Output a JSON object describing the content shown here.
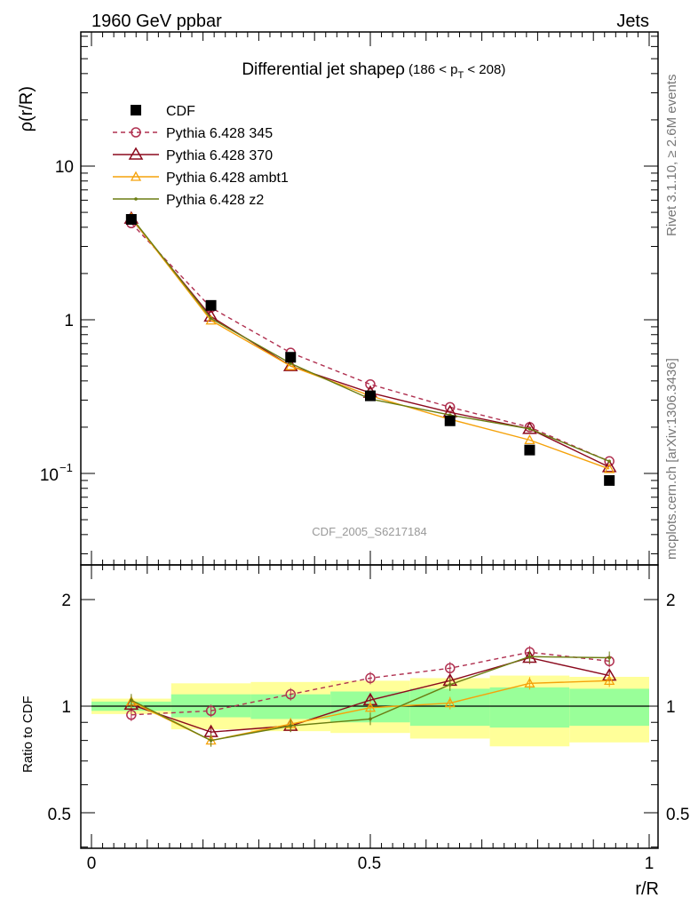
{
  "header": {
    "left": "1960 GeV ppbar",
    "right": "Jets"
  },
  "side_labels": {
    "rivet": "Rivet 3.1.10, ≥ 2.6M events",
    "mcplots": "mcplots.cern.ch [arXiv:1306.3436]"
  },
  "main": {
    "title_main": "Differential jet shapeρ",
    "title_range_a": "(186 < p",
    "title_range_sub": "T",
    "title_range_b": " < 208)",
    "ylabel": "ρ(r/R)",
    "watermark": "CDF_2005_S6217184",
    "ytick_labels": [
      "10",
      "1",
      "10"
    ],
    "ytick_exp": "−1"
  },
  "ratio": {
    "ylabel": "Ratio to CDF",
    "ytick_labels": [
      "2",
      "1",
      "0.5"
    ]
  },
  "xaxis": {
    "label": "r/R",
    "tick_labels": [
      "0",
      "0.5",
      "1"
    ]
  },
  "chart_data": [
    {
      "type": "line",
      "panel": "main",
      "ylog": true,
      "ylim": [
        0.025,
        60
      ],
      "xlim": [
        -0.03,
        1.0
      ],
      "xlabel": "r/R",
      "ylabel": "ρ(r/R)",
      "x": [
        0.0714,
        0.2143,
        0.3571,
        0.5,
        0.6429,
        0.7857,
        0.9286
      ],
      "series": [
        {
          "name": "CDF",
          "style": "data",
          "color": "#000000",
          "values": [
            4.5,
            1.24,
            0.57,
            0.32,
            0.22,
            0.142,
            0.09
          ]
        },
        {
          "name": "Pythia 6.428 345",
          "style": "dashed-circle",
          "color": "#b03050",
          "values": [
            4.25,
            1.2,
            0.61,
            0.38,
            0.27,
            0.2,
            0.12
          ]
        },
        {
          "name": "Pythia 6.428 370",
          "style": "solid-triangle",
          "color": "#8b0a1e",
          "values": [
            4.55,
            1.05,
            0.5,
            0.335,
            0.25,
            0.195,
            0.11
          ]
        },
        {
          "name": "Pythia 6.428 ambt1",
          "style": "solid-triangle-small",
          "color": "#f5a20a",
          "values": [
            4.6,
            0.99,
            0.5,
            0.32,
            0.225,
            0.165,
            0.107
          ]
        },
        {
          "name": "Pythia 6.428 z2",
          "style": "solid-dot",
          "color": "#6b7d12",
          "values": [
            4.65,
            1.02,
            0.52,
            0.305,
            0.24,
            0.195,
            0.12
          ]
        }
      ]
    },
    {
      "type": "line",
      "panel": "ratio",
      "ylog": true,
      "ylim": [
        0.4,
        2.5
      ],
      "xlabel": "r/R",
      "ylabel": "Ratio to CDF",
      "x": [
        0.0714,
        0.2143,
        0.3571,
        0.5,
        0.6429,
        0.7857,
        0.9286
      ],
      "series": [
        {
          "name": "Pythia 6.428 345",
          "color": "#b03050",
          "values": [
            0.945,
            0.97,
            1.08,
            1.2,
            1.28,
            1.42,
            1.34
          ]
        },
        {
          "name": "Pythia 6.428 370",
          "color": "#8b0a1e",
          "values": [
            1.01,
            0.845,
            0.88,
            1.04,
            1.18,
            1.37,
            1.22
          ]
        },
        {
          "name": "Pythia 6.428 ambt1",
          "color": "#f5a20a",
          "values": [
            1.03,
            0.8,
            0.89,
            0.99,
            1.02,
            1.16,
            1.18
          ]
        },
        {
          "name": "Pythia 6.428 z2",
          "color": "#6b7d12",
          "values": [
            1.04,
            0.8,
            0.88,
            0.92,
            1.15,
            1.38,
            1.37
          ]
        }
      ],
      "bands": {
        "edges": [
          0.0,
          0.1429,
          0.2857,
          0.4286,
          0.5714,
          0.7143,
          0.8571,
          1.0
        ],
        "green_lo": [
          0.97,
          0.93,
          0.92,
          0.9,
          0.88,
          0.87,
          0.88
        ],
        "green_hi": [
          1.03,
          1.08,
          1.08,
          1.1,
          1.12,
          1.13,
          1.12
        ],
        "yellow_lo": [
          0.95,
          0.86,
          0.85,
          0.84,
          0.81,
          0.77,
          0.79
        ],
        "yellow_hi": [
          1.05,
          1.16,
          1.17,
          1.18,
          1.2,
          1.22,
          1.21
        ]
      }
    }
  ]
}
